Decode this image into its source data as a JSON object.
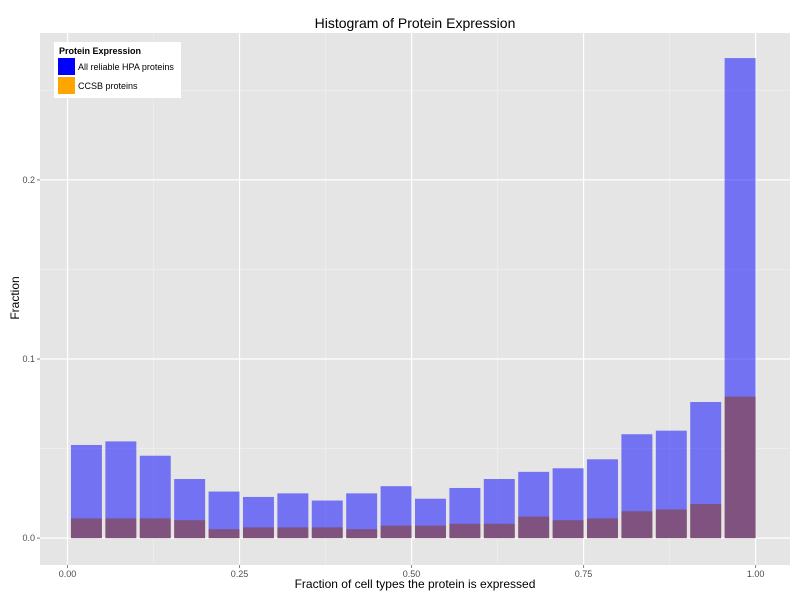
{
  "chart_data": {
    "type": "bar",
    "title": "Histogram of Protein Expression",
    "xlabel": "Fraction of cell types the protein is expressed",
    "ylabel": "Fraction",
    "xlim": [
      -0.04,
      1.05
    ],
    "ylim": [
      -0.015,
      0.282
    ],
    "x_ticks": [
      0.0,
      0.25,
      0.5,
      0.75,
      1.0
    ],
    "x_tick_labels": [
      "0.00",
      "0.25",
      "0.50",
      "0.75",
      "1.00"
    ],
    "y_ticks": [
      0.0,
      0.1,
      0.2
    ],
    "y_tick_labels": [
      "0.0",
      "0.1",
      "0.2"
    ],
    "bin_width": 0.05,
    "bar_width": 0.045,
    "x": [
      0.0275,
      0.0775,
      0.1275,
      0.1775,
      0.2275,
      0.2775,
      0.3275,
      0.3775,
      0.4275,
      0.4775,
      0.5275,
      0.5775,
      0.6275,
      0.6775,
      0.7275,
      0.7775,
      0.8275,
      0.8775,
      0.9275,
      0.9775
    ],
    "grid": true,
    "background": "#e5e5e5",
    "legend": {
      "title": "Protein Expression",
      "placement": "top-left"
    },
    "series": [
      {
        "name": "All reliable HPA proteins",
        "color": "#0000ff",
        "opacity": 0.5,
        "values": [
          0.052,
          0.054,
          0.046,
          0.033,
          0.026,
          0.023,
          0.025,
          0.021,
          0.025,
          0.029,
          0.022,
          0.028,
          0.033,
          0.037,
          0.039,
          0.044,
          0.058,
          0.06,
          0.076,
          0.268
        ]
      },
      {
        "name": "CCSB proteins",
        "color": "#ffa500",
        "opacity": 1.0,
        "values": [
          0.011,
          0.011,
          0.011,
          0.01,
          0.005,
          0.006,
          0.006,
          0.006,
          0.005,
          0.007,
          0.007,
          0.008,
          0.008,
          0.012,
          0.01,
          0.011,
          0.015,
          0.016,
          0.019,
          0.079
        ]
      }
    ]
  }
}
